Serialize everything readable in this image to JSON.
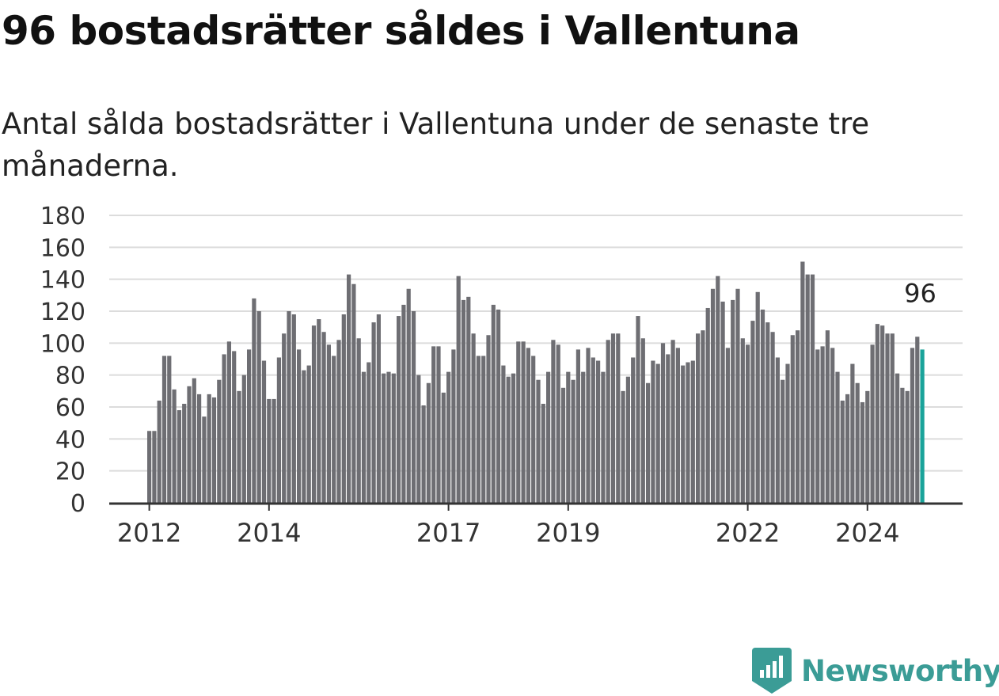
{
  "title": "96 bostadsrätter såldes i Vallentuna",
  "subtitle": "Antal sålda bostadsrätter i Vallentuna under de senaste tre månaderna.",
  "brand": {
    "name": "Newsworthy",
    "color": "#3b9c96",
    "icon": "bar-chart-badge-icon"
  },
  "colors": {
    "bar": "#6e6e73",
    "highlight": "#1aa39a",
    "grid": "#dcdcdc",
    "axis": "#333333"
  },
  "chart_data": {
    "type": "bar",
    "ylim": [
      0,
      180
    ],
    "yticks": [
      0,
      20,
      40,
      60,
      80,
      100,
      120,
      140,
      160,
      180
    ],
    "x_start": "2012-01",
    "xtick_labels": [
      {
        "label": "2012",
        "index": 0
      },
      {
        "label": "2014",
        "index": 24
      },
      {
        "label": "2017",
        "index": 60
      },
      {
        "label": "2019",
        "index": 84
      },
      {
        "label": "2022",
        "index": 120
      },
      {
        "label": "2024",
        "index": 144
      }
    ],
    "values": [
      45,
      45,
      64,
      92,
      92,
      71,
      58,
      62,
      73,
      78,
      68,
      54,
      68,
      66,
      77,
      93,
      101,
      95,
      70,
      80,
      96,
      128,
      120,
      89,
      65,
      65,
      91,
      106,
      120,
      118,
      96,
      83,
      86,
      111,
      115,
      107,
      99,
      92,
      102,
      118,
      143,
      137,
      103,
      82,
      88,
      113,
      118,
      81,
      82,
      81,
      117,
      124,
      134,
      120,
      80,
      61,
      75,
      98,
      98,
      69,
      82,
      96,
      142,
      127,
      129,
      106,
      92,
      92,
      105,
      124,
      121,
      86,
      79,
      81,
      101,
      101,
      97,
      92,
      77,
      62,
      82,
      102,
      99,
      72,
      82,
      77,
      96,
      82,
      97,
      91,
      89,
      82,
      102,
      106,
      106,
      70,
      79,
      91,
      117,
      103,
      75,
      89,
      87,
      100,
      93,
      102,
      97,
      86,
      88,
      89,
      106,
      108,
      122,
      134,
      142,
      126,
      97,
      127,
      134,
      103,
      99,
      114,
      132,
      121,
      113,
      107,
      91,
      77,
      87,
      105,
      108,
      151,
      143,
      143,
      96,
      98,
      108,
      97,
      82,
      64,
      68,
      87,
      75,
      63,
      70,
      99,
      112,
      111,
      106,
      106,
      81,
      72,
      70,
      97,
      104,
      96
    ],
    "highlight_label": "96"
  }
}
